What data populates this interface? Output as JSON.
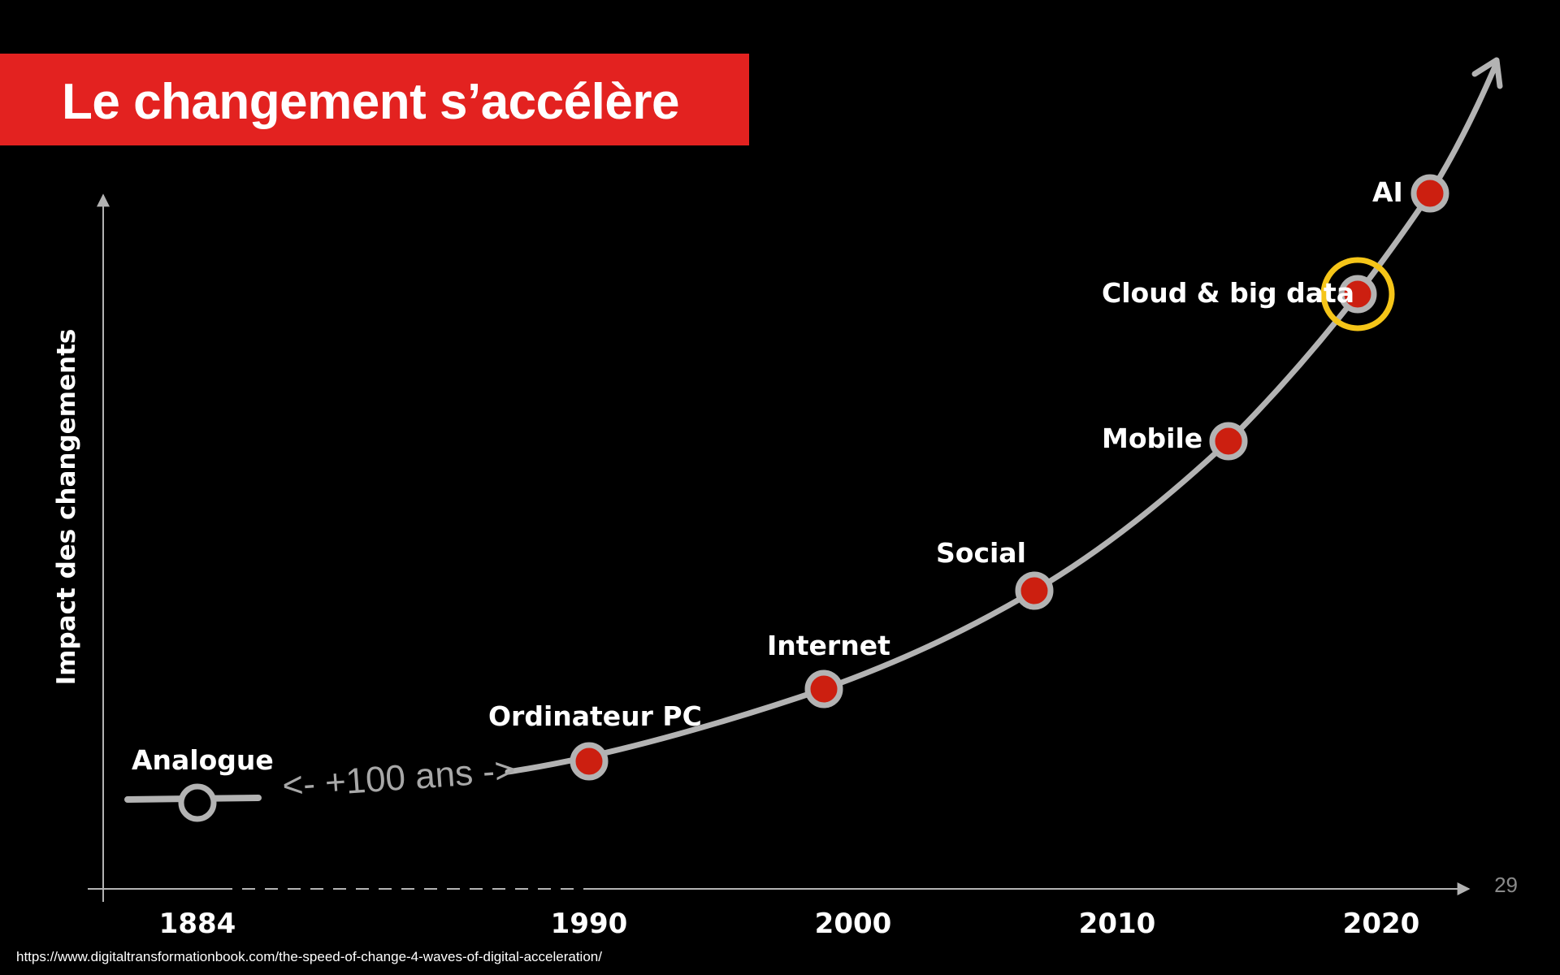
{
  "title": "Le changement s’accélère",
  "y_axis_label": "Impact des changements",
  "gap_note": "<- +100 ans ->",
  "page_number": "29",
  "source": "https://www.digitaltransformationbook.com/the-speed-of-change-4-waves-of-digital-acceleration/",
  "colors": {
    "title_background": "#e32220",
    "milestone_fill": "#cc1f10",
    "curve": "#b3b3b3",
    "highlight_ring": "#f5c518"
  },
  "x_axis": {
    "ticks": [
      "1884",
      "1990",
      "2000",
      "2010",
      "2020"
    ]
  },
  "milestones": [
    {
      "label": "Analogue",
      "year": 1884,
      "filled": false,
      "highlight": false
    },
    {
      "label": "Ordinateur PC",
      "year": 1990,
      "filled": true,
      "highlight": false
    },
    {
      "label": "Internet",
      "year": 1999,
      "filled": true,
      "highlight": false
    },
    {
      "label": "Social",
      "year": 2007,
      "filled": true,
      "highlight": false
    },
    {
      "label": "Mobile",
      "year": 2014,
      "filled": true,
      "highlight": false
    },
    {
      "label": "Cloud & big data",
      "year": 2019,
      "filled": true,
      "highlight": true
    },
    {
      "label": "AI",
      "year": 2022,
      "filled": true,
      "highlight": false
    }
  ]
}
